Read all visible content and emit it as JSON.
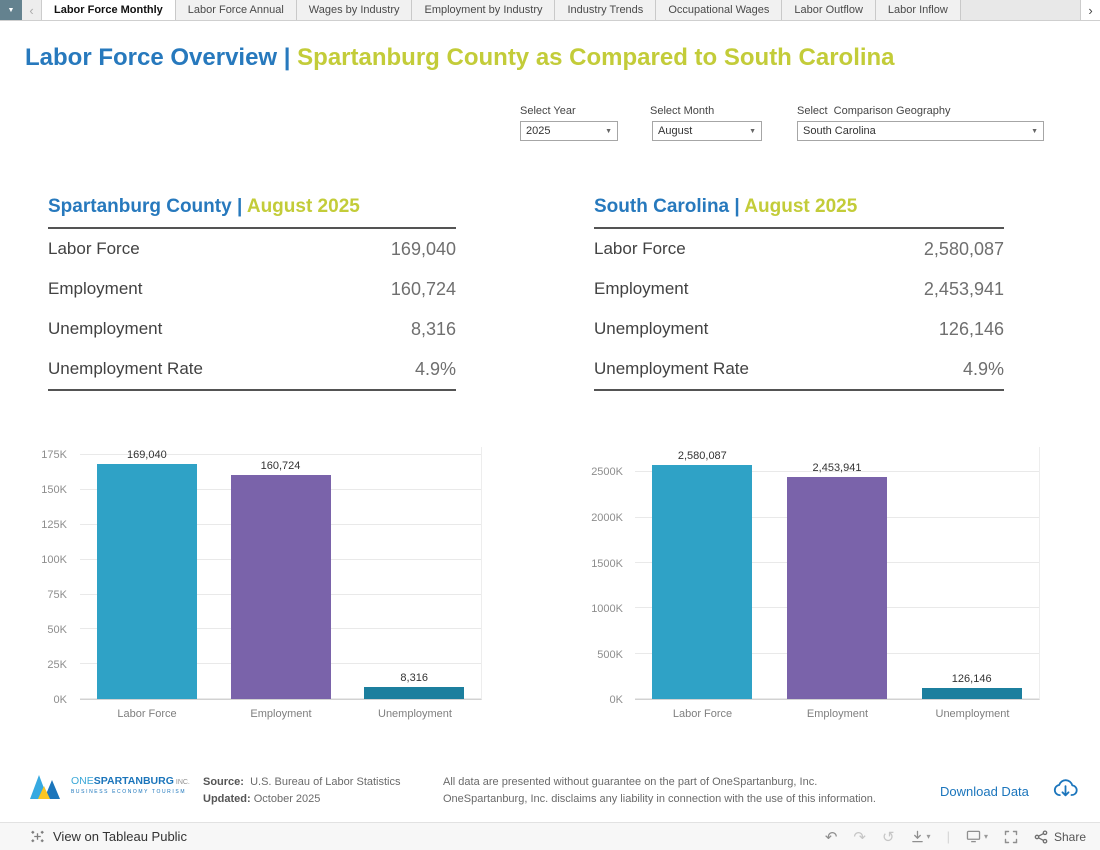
{
  "tabs": {
    "items": [
      "Labor Force Monthly",
      "Labor Force Annual",
      "Wages by Industry",
      "Employment by Industry",
      "Industry Trends",
      "Occupational Wages",
      "Labor Outflow",
      "Labor Inflow"
    ],
    "active_index": 0
  },
  "header": {
    "title_primary": "Labor Force Overview |",
    "title_secondary": "Spartanburg County as Compared to South Carolina"
  },
  "filters": {
    "year": {
      "label": "Select Year",
      "value": "2025"
    },
    "month": {
      "label": "Select Month",
      "value": "August"
    },
    "geography": {
      "label": "Select  Comparison Geography",
      "value": "South Carolina"
    }
  },
  "panels": [
    {
      "title": "Spartanburg County |",
      "subtitle": "August 2025",
      "rows": [
        {
          "label": "Labor Force",
          "value": "169,040"
        },
        {
          "label": "Employment",
          "value": "160,724"
        },
        {
          "label": "Unemployment",
          "value": "8,316"
        },
        {
          "label": "Unemployment Rate",
          "value": "4.9%"
        }
      ]
    },
    {
      "title": "South Carolina |",
      "subtitle": "August 2025",
      "rows": [
        {
          "label": "Labor Force",
          "value": "2,580,087"
        },
        {
          "label": "Employment",
          "value": "2,453,941"
        },
        {
          "label": "Unemployment",
          "value": "126,146"
        },
        {
          "label": "Unemployment Rate",
          "value": "4.9%"
        }
      ]
    }
  ],
  "chart_data": [
    {
      "type": "bar",
      "title": "Spartanburg County | August 2025",
      "categories": [
        "Labor Force",
        "Employment",
        "Unemployment"
      ],
      "values": [
        169040,
        160724,
        8316
      ],
      "value_labels": [
        "169,040",
        "160,724",
        "8,316"
      ],
      "colors": [
        "#2FA2C6",
        "#7A63AA",
        "#1C7F9E"
      ],
      "xlabel": "",
      "ylabel": "",
      "ylim": [
        0,
        181000
      ],
      "yticks": [
        {
          "value": 0,
          "label": "0K"
        },
        {
          "value": 25000,
          "label": "25K"
        },
        {
          "value": 50000,
          "label": "50K"
        },
        {
          "value": 75000,
          "label": "75K"
        },
        {
          "value": 100000,
          "label": "100K"
        },
        {
          "value": 125000,
          "label": "125K"
        },
        {
          "value": 150000,
          "label": "150K"
        },
        {
          "value": 175000,
          "label": "175K"
        }
      ],
      "grid": true,
      "legend": false
    },
    {
      "type": "bar",
      "title": "South Carolina | August 2025",
      "categories": [
        "Labor Force",
        "Employment",
        "Unemployment"
      ],
      "values": [
        2580087,
        2453941,
        126146
      ],
      "value_labels": [
        "2,580,087",
        "2,453,941",
        "126,146"
      ],
      "colors": [
        "#2FA2C6",
        "#7A63AA",
        "#1C7F9E"
      ],
      "xlabel": "",
      "ylabel": "",
      "ylim": [
        0,
        2780000
      ],
      "yticks": [
        {
          "value": 0,
          "label": "0K"
        },
        {
          "value": 500000,
          "label": "500K"
        },
        {
          "value": 1000000,
          "label": "1000K"
        },
        {
          "value": 1500000,
          "label": "1500K"
        },
        {
          "value": 2000000,
          "label": "2000K"
        },
        {
          "value": 2500000,
          "label": "2500K"
        }
      ],
      "grid": true,
      "legend": false
    }
  ],
  "footer": {
    "logo": {
      "one": "ONE",
      "spartanburg": "SPARTANBURG",
      "inc": "INC.",
      "tagline": "BUSINESS ECONOMY TOURISM"
    },
    "source_label": "Source:",
    "source_value": "U.S. Bureau of Labor Statistics",
    "updated_label": "Updated:",
    "updated_value": "October 2025",
    "disclaimer_line1": "All data are presented without guarantee on the part of OneSpartanburg, Inc.",
    "disclaimer_line2": "OneSpartanburg, Inc. disclaims any liability in connection with the use of this information.",
    "download_label": "Download Data"
  },
  "toolbar": {
    "view_on": "View on Tableau Public",
    "share_label": "Share"
  },
  "icons": {
    "caret_down": "▼",
    "chevron_left": "‹",
    "chevron_right": "›",
    "undo": "↶",
    "redo": "↷",
    "revert": "↺",
    "caret_small": "▾"
  },
  "colors": {
    "accent_blue": "#2779BD",
    "accent_green": "#C3CC39",
    "link_blue": "#1B75BC",
    "bar_teal": "#2FA2C6",
    "bar_purple": "#7A63AA",
    "bar_dark_teal": "#1C7F9E"
  }
}
